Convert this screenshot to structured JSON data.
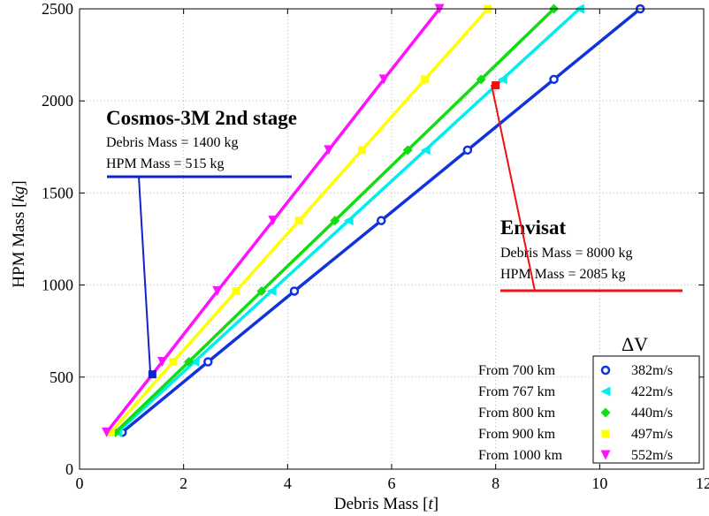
{
  "chart_data": {
    "type": "line",
    "xlabel": "Debris Mass",
    "xlabel_unit": "t",
    "ylabel": "HPM Mass",
    "ylabel_unit": "kg",
    "xlim": [
      0,
      12
    ],
    "ylim": [
      0,
      2500
    ],
    "xticks": [
      0,
      2,
      4,
      6,
      8,
      10,
      12
    ],
    "yticks": [
      0,
      500,
      1000,
      1500,
      2000,
      2500
    ],
    "grid": true,
    "legend_title": "ΔV",
    "legend_position": "bottom-right",
    "y_values": [
      200,
      583,
      967,
      1350,
      1733,
      2117,
      2500
    ],
    "series": [
      {
        "name": "382m/s",
        "from": "From 700 km",
        "color": "#1133dd",
        "marker": "circle",
        "x": [
          0.82,
          2.47,
          4.13,
          5.8,
          7.46,
          9.12,
          10.78
        ]
      },
      {
        "name": "422m/s",
        "from": "From 767 km",
        "color": "#00eeee",
        "marker": "triangle-left",
        "x": [
          0.73,
          2.21,
          3.69,
          5.17,
          6.65,
          8.13,
          9.61
        ]
      },
      {
        "name": "440m/s",
        "from": "From 800 km",
        "color": "#11dd11",
        "marker": "diamond",
        "x": [
          0.69,
          2.1,
          3.5,
          4.91,
          6.31,
          7.72,
          9.12
        ]
      },
      {
        "name": "497m/s",
        "from": "From 900 km",
        "color": "#ffff00",
        "marker": "square",
        "x": [
          0.6,
          1.8,
          3.01,
          4.22,
          5.43,
          6.64,
          7.85
        ]
      },
      {
        "name": "552m/s",
        "from": "From 1000 km",
        "color": "#ff11ff",
        "marker": "triangle-down",
        "x": [
          0.52,
          1.59,
          2.65,
          3.72,
          4.79,
          5.85,
          6.92
        ]
      }
    ],
    "annotations": [
      {
        "id": "cosmos",
        "title": "Cosmos-3M 2nd stage",
        "lines": [
          "Debris Mass = 1400 kg",
          "HPM Mass = 515 kg"
        ],
        "color": "#1122cc",
        "point": [
          1.4,
          515
        ]
      },
      {
        "id": "envisat",
        "title": "Envisat",
        "lines": [
          "Debris Mass = 8000 kg",
          "HPM Mass = 2085 kg"
        ],
        "color": "#ee1111",
        "point": [
          8.0,
          2085
        ]
      }
    ]
  }
}
